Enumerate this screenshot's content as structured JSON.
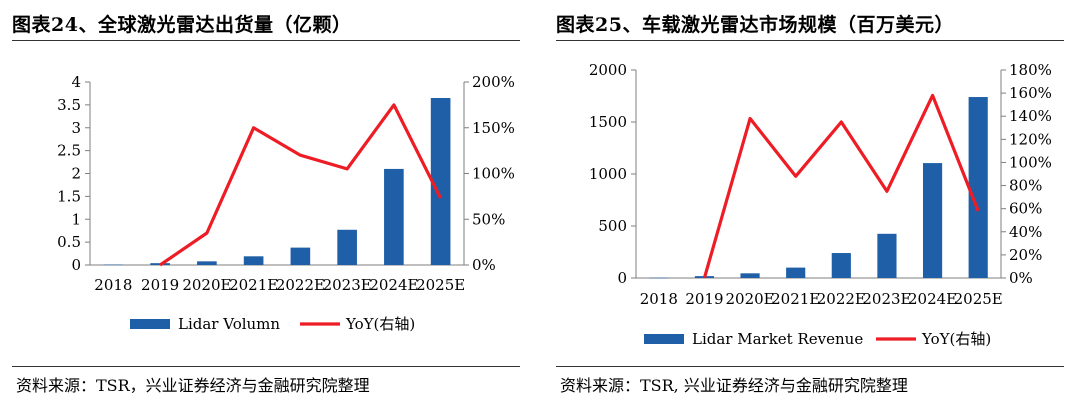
{
  "figures": [
    {
      "title": "图表24、全球激光雷达出货量（亿颗）",
      "source": "资料来源：TSR，兴业证券经济与金融研究院整理"
    },
    {
      "title": "图表25、车载激光雷达市场规模（百万美元）",
      "source": "资料来源：TSR, 兴业证券经济与金融研究院整理"
    }
  ],
  "colors": {
    "bar": "#1f5fa8",
    "line": "#ee1c24",
    "axis": "#7f7f7f"
  },
  "chart_data": [
    {
      "type": "bar+line",
      "categories": [
        "2018",
        "2019",
        "2020E",
        "2021E",
        "2022E",
        "2023E",
        "2024E",
        "2025E"
      ],
      "series": [
        {
          "name": "Lidar Volumn",
          "type": "bar",
          "axis": "left",
          "values": [
            0.01,
            0.04,
            0.08,
            0.19,
            0.38,
            0.77,
            2.1,
            3.65
          ]
        },
        {
          "name": "YoY(右轴)",
          "type": "line",
          "axis": "right",
          "values": [
            null,
            0,
            35,
            150,
            120,
            105,
            175,
            73
          ]
        }
      ],
      "left_axis": {
        "min": 0,
        "max": 4,
        "ticks": [
          0,
          0.5,
          1,
          1.5,
          2,
          2.5,
          3,
          3.5,
          4
        ],
        "tick_labels": [
          "0",
          "0.5",
          "1",
          "1.5",
          "2",
          "2.5",
          "3",
          "3.5",
          "4"
        ]
      },
      "right_axis": {
        "min": 0,
        "max": 200,
        "ticks": [
          0,
          50,
          100,
          150,
          200
        ],
        "tick_labels": [
          "0%",
          "50%",
          "100%",
          "150%",
          "200%"
        ]
      },
      "legend": "bottom"
    },
    {
      "type": "bar+line",
      "categories": [
        "2018",
        "2019",
        "2020E",
        "2021E",
        "2022E",
        "2023E",
        "2024E",
        "2025E"
      ],
      "series": [
        {
          "name": "Lidar Market Revenue",
          "type": "bar",
          "axis": "left",
          "values": [
            2,
            18,
            45,
            100,
            240,
            425,
            1105,
            1740
          ]
        },
        {
          "name": "YoY(右轴)",
          "type": "line",
          "axis": "right",
          "values": [
            null,
            0,
            138,
            88,
            135,
            75,
            158,
            58
          ]
        }
      ],
      "left_axis": {
        "min": 0,
        "max": 2000,
        "ticks": [
          0,
          500,
          1000,
          1500,
          2000
        ],
        "tick_labels": [
          "0",
          "500",
          "1000",
          "1500",
          "2000"
        ]
      },
      "right_axis": {
        "min": 0,
        "max": 180,
        "ticks": [
          0,
          20,
          40,
          60,
          80,
          100,
          120,
          140,
          160,
          180
        ],
        "tick_labels": [
          "0%",
          "20%",
          "40%",
          "60%",
          "80%",
          "100%",
          "120%",
          "140%",
          "160%",
          "180%"
        ]
      },
      "legend": "bottom"
    }
  ]
}
